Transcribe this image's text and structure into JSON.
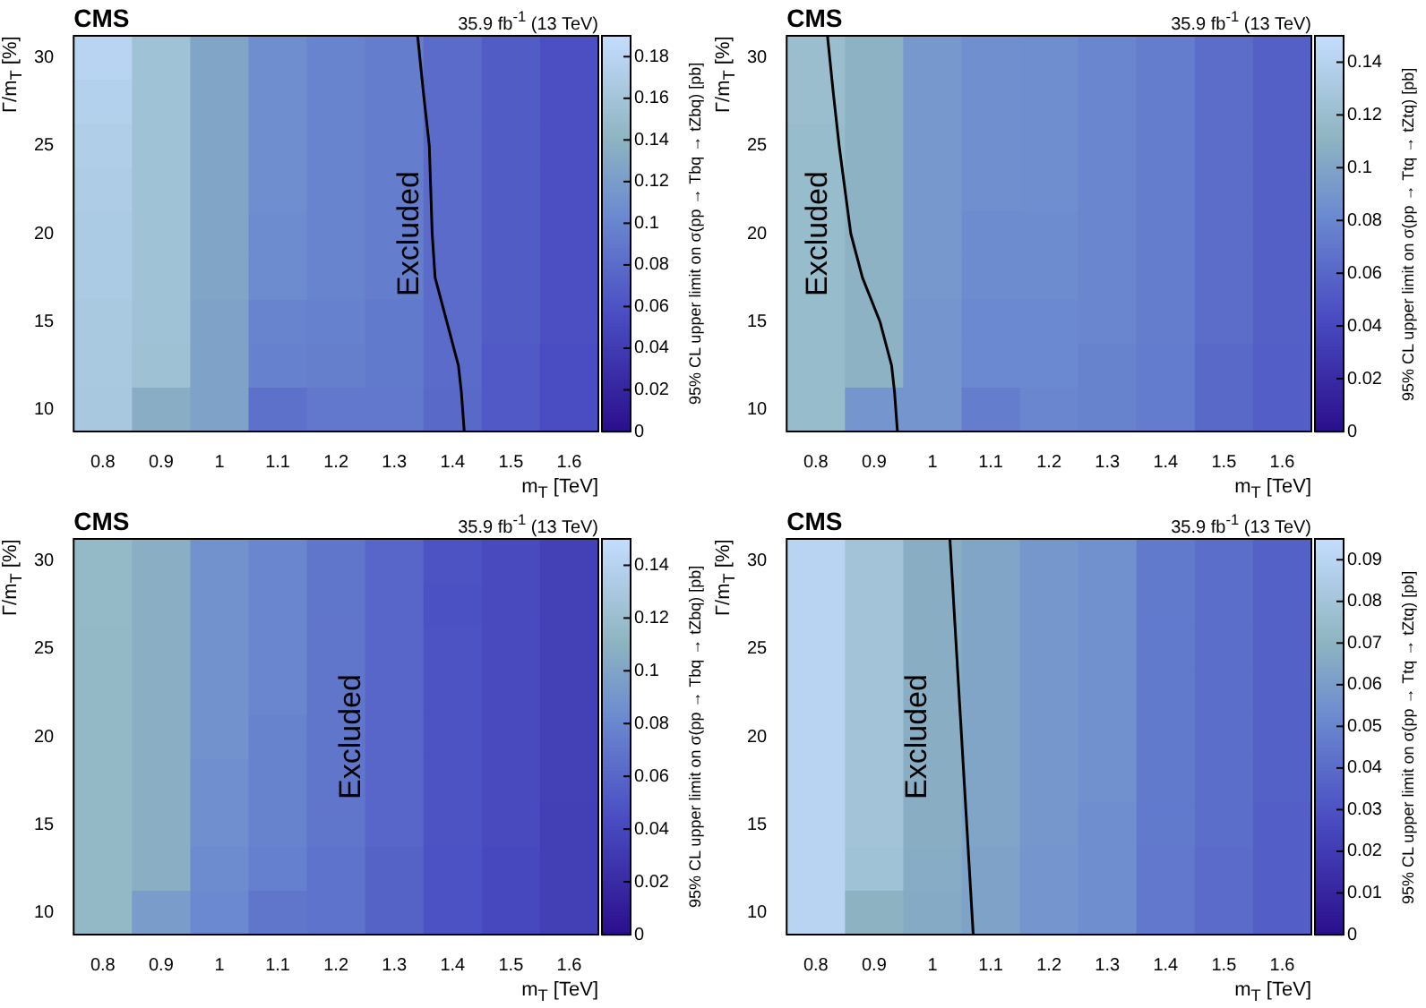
{
  "chart_data": [
    {
      "type": "heatmap",
      "title": "CMS",
      "subtitle": "35.9 fb$^{-1}$ (13 TeV)",
      "xlabel": "m$_{T}$ [TeV]",
      "ylabel": "Γ/m$_{T}$ [%]",
      "clabel": "95% CL upper limit on σ(pp → Tbq → tZbq) [pb]",
      "xlim": [
        0.75,
        1.65
      ],
      "ylim": [
        8.75,
        31.25
      ],
      "xticks": [
        0.8,
        0.9,
        1,
        1.1,
        1.2,
        1.3,
        1.4,
        1.5,
        1.6
      ],
      "yticks": [
        10,
        15,
        20,
        25,
        30
      ],
      "cells": [
        [
          0.18,
          0.158,
          0.128,
          0.108,
          0.1,
          0.094,
          0.08,
          0.068,
          0.058
        ],
        [
          0.175,
          0.158,
          0.128,
          0.108,
          0.1,
          0.094,
          0.08,
          0.068,
          0.058
        ],
        [
          0.172,
          0.158,
          0.128,
          0.108,
          0.1,
          0.094,
          0.08,
          0.068,
          0.058
        ],
        [
          0.17,
          0.158,
          0.128,
          0.108,
          0.1,
          0.094,
          0.08,
          0.068,
          0.058
        ],
        [
          0.168,
          0.158,
          0.128,
          0.106,
          0.1,
          0.094,
          0.08,
          0.068,
          0.058
        ],
        [
          0.168,
          0.158,
          0.128,
          0.106,
          0.1,
          0.094,
          0.08,
          0.068,
          0.058
        ],
        [
          0.166,
          0.158,
          0.126,
          0.1,
          0.098,
          0.092,
          0.08,
          0.068,
          0.058
        ],
        [
          0.166,
          0.156,
          0.126,
          0.098,
          0.096,
          0.092,
          0.08,
          0.066,
          0.056
        ],
        [
          0.165,
          0.135,
          0.125,
          0.085,
          0.09,
          0.09,
          0.078,
          0.066,
          0.056
        ]
      ],
      "clim": [
        0,
        0.19
      ],
      "cticks": [
        0,
        0.02,
        0.04,
        0.06,
        0.08,
        0.1,
        0.12,
        0.14,
        0.16,
        0.18
      ],
      "series": [
        {
          "type": "line",
          "color": "#000000",
          "x": [
            1.42,
            1.415,
            1.41,
            1.39,
            1.37,
            1.365,
            1.36,
            1.35,
            1.34
          ],
          "values": [
            8.75,
            11,
            12.5,
            15,
            17.5,
            20,
            25,
            28,
            31.25
          ]
        }
      ],
      "annotations": [
        "Excluded"
      ]
    },
    {
      "type": "heatmap",
      "title": "CMS",
      "subtitle": "35.9 fb$^{-1}$ (13 TeV)",
      "xlabel": "m$_{T}$ [TeV]",
      "ylabel": "Γ/m$_{T}$ [%]",
      "clabel": "95% CL upper limit on σ(pp → Ttq → tZtq) [pb]",
      "xlim": [
        0.75,
        1.65
      ],
      "ylim": [
        8.75,
        31.25
      ],
      "xticks": [
        0.8,
        0.9,
        1,
        1.1,
        1.2,
        1.3,
        1.4,
        1.5,
        1.6
      ],
      "yticks": [
        10,
        15,
        20,
        25,
        30
      ],
      "cells": [
        [
          0.12,
          0.11,
          0.092,
          0.086,
          0.085,
          0.08,
          0.075,
          0.064,
          0.056
        ],
        [
          0.12,
          0.11,
          0.092,
          0.086,
          0.085,
          0.08,
          0.075,
          0.064,
          0.056
        ],
        [
          0.118,
          0.11,
          0.092,
          0.086,
          0.085,
          0.08,
          0.075,
          0.064,
          0.056
        ],
        [
          0.118,
          0.11,
          0.092,
          0.086,
          0.085,
          0.08,
          0.075,
          0.064,
          0.056
        ],
        [
          0.118,
          0.11,
          0.092,
          0.084,
          0.084,
          0.08,
          0.075,
          0.064,
          0.056
        ],
        [
          0.118,
          0.11,
          0.092,
          0.084,
          0.084,
          0.08,
          0.075,
          0.064,
          0.056
        ],
        [
          0.118,
          0.11,
          0.09,
          0.082,
          0.082,
          0.08,
          0.075,
          0.064,
          0.056
        ],
        [
          0.118,
          0.11,
          0.09,
          0.082,
          0.082,
          0.078,
          0.074,
          0.062,
          0.055
        ],
        [
          0.118,
          0.09,
          0.09,
          0.075,
          0.08,
          0.078,
          0.074,
          0.062,
          0.055
        ]
      ],
      "clim": [
        0,
        0.15
      ],
      "cticks": [
        0,
        0.02,
        0.04,
        0.06,
        0.08,
        0.1,
        0.12,
        0.14
      ],
      "series": [
        {
          "type": "line",
          "color": "#000000",
          "x": [
            0.94,
            0.935,
            0.93,
            0.91,
            0.88,
            0.86,
            0.84,
            0.83,
            0.82
          ],
          "values": [
            8.75,
            11,
            12.5,
            15,
            17.5,
            20,
            25,
            28,
            31.25
          ]
        }
      ],
      "annotations": [
        "Excluded"
      ]
    },
    {
      "type": "heatmap",
      "title": "CMS",
      "subtitle": "35.9 fb$^{-1}$ (13 TeV)",
      "xlabel": "m$_{T}$ [TeV]",
      "ylabel": "Γ/m$_{T}$ [%]",
      "clabel": "95% CL upper limit on σ(pp → Tbq → tZbq) [pb]",
      "xlim": [
        0.75,
        1.65
      ],
      "ylim": [
        8.75,
        31.25
      ],
      "xticks": [
        0.8,
        0.9,
        1,
        1.1,
        1.2,
        1.3,
        1.4,
        1.5,
        1.6
      ],
      "yticks": [
        10,
        15,
        20,
        25,
        30
      ],
      "cells": [
        [
          0.116,
          0.108,
          0.088,
          0.08,
          0.07,
          0.06,
          0.048,
          0.042,
          0.036
        ],
        [
          0.116,
          0.108,
          0.088,
          0.08,
          0.07,
          0.06,
          0.046,
          0.042,
          0.036
        ],
        [
          0.115,
          0.108,
          0.088,
          0.08,
          0.07,
          0.06,
          0.048,
          0.042,
          0.036
        ],
        [
          0.115,
          0.108,
          0.088,
          0.08,
          0.07,
          0.06,
          0.048,
          0.042,
          0.036
        ],
        [
          0.115,
          0.108,
          0.088,
          0.078,
          0.07,
          0.06,
          0.048,
          0.042,
          0.036
        ],
        [
          0.115,
          0.108,
          0.086,
          0.078,
          0.07,
          0.06,
          0.048,
          0.042,
          0.036
        ],
        [
          0.115,
          0.108,
          0.086,
          0.078,
          0.07,
          0.06,
          0.048,
          0.042,
          0.035
        ],
        [
          0.115,
          0.108,
          0.084,
          0.076,
          0.068,
          0.058,
          0.047,
          0.041,
          0.035
        ],
        [
          0.115,
          0.095,
          0.082,
          0.07,
          0.068,
          0.058,
          0.047,
          0.041,
          0.035
        ]
      ],
      "clim": [
        0,
        0.15
      ],
      "cticks": [
        0,
        0.02,
        0.04,
        0.06,
        0.08,
        0.1,
        0.12,
        0.14
      ],
      "annotations": [
        "Excluded"
      ]
    },
    {
      "type": "heatmap",
      "title": "CMS",
      "subtitle": "35.9 fb$^{-1}$ (13 TeV)",
      "xlabel": "m$_{T}$ [TeV]",
      "ylabel": "Γ/m$_{T}$ [%]",
      "clabel": "95% CL upper limit on σ(pp → Ttq → tZtq) [pb]",
      "xlim": [
        0.75,
        1.65
      ],
      "ylim": [
        8.75,
        31.25
      ],
      "xticks": [
        0.8,
        0.9,
        1,
        1.1,
        1.2,
        1.3,
        1.4,
        1.5,
        1.6
      ],
      "yticks": [
        10,
        15,
        20,
        25,
        30
      ],
      "cells": [
        [
          0.09,
          0.08,
          0.068,
          0.064,
          0.058,
          0.055,
          0.046,
          0.041,
          0.036
        ],
        [
          0.09,
          0.08,
          0.068,
          0.064,
          0.058,
          0.055,
          0.046,
          0.041,
          0.036
        ],
        [
          0.09,
          0.08,
          0.068,
          0.064,
          0.058,
          0.055,
          0.046,
          0.041,
          0.036
        ],
        [
          0.09,
          0.08,
          0.068,
          0.064,
          0.058,
          0.055,
          0.046,
          0.041,
          0.036
        ],
        [
          0.09,
          0.08,
          0.068,
          0.064,
          0.058,
          0.055,
          0.046,
          0.041,
          0.036
        ],
        [
          0.09,
          0.08,
          0.068,
          0.064,
          0.058,
          0.055,
          0.046,
          0.041,
          0.036
        ],
        [
          0.09,
          0.08,
          0.068,
          0.064,
          0.058,
          0.054,
          0.046,
          0.041,
          0.035
        ],
        [
          0.09,
          0.079,
          0.067,
          0.063,
          0.057,
          0.054,
          0.045,
          0.04,
          0.035
        ],
        [
          0.09,
          0.07,
          0.066,
          0.063,
          0.057,
          0.054,
          0.045,
          0.04,
          0.035
        ]
      ],
      "clim": [
        0,
        0.095
      ],
      "cticks": [
        0,
        0.01,
        0.02,
        0.03,
        0.04,
        0.05,
        0.06,
        0.07,
        0.08,
        0.09
      ],
      "series": [
        {
          "type": "line",
          "color": "#000000",
          "x": [
            1.07,
            1.03
          ],
          "values": [
            8.75,
            31.25
          ]
        }
      ],
      "annotations": [
        "Excluded"
      ]
    }
  ]
}
